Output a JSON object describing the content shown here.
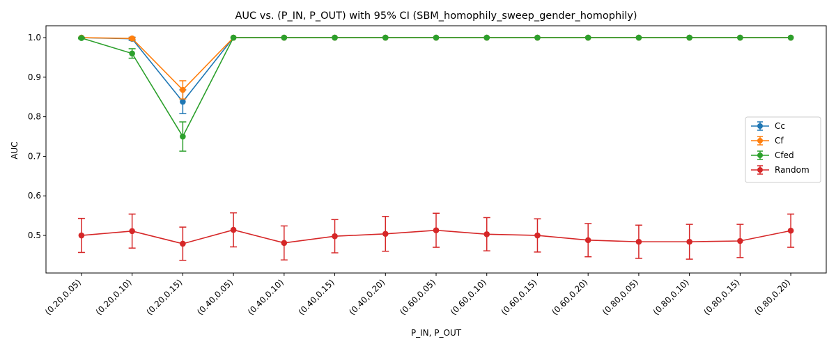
{
  "chart_data": {
    "type": "line",
    "title": "AUC vs. (P_IN, P_OUT) with 95% CI (SBM_homophily_sweep_gender_homophily)",
    "xlabel": "P_IN, P_OUT",
    "ylabel": "AUC",
    "categories": [
      "(0.20,0.05)",
      "(0.20,0.10)",
      "(0.20,0.15)",
      "(0.40,0.05)",
      "(0.40,0.10)",
      "(0.40,0.15)",
      "(0.40,0.20)",
      "(0.60,0.05)",
      "(0.60,0.10)",
      "(0.60,0.15)",
      "(0.60,0.20)",
      "(0.80,0.05)",
      "(0.80,0.10)",
      "(0.80,0.15)",
      "(0.80,0.20)"
    ],
    "ylim": [
      0.405,
      1.03
    ],
    "yticks": [
      0.5,
      0.6,
      0.7,
      0.8,
      0.9,
      1.0
    ],
    "legend_position": "center-right",
    "grid": false,
    "series": [
      {
        "name": "Cc",
        "color": "#1f77b4",
        "values": [
          1.0,
          0.997,
          0.838,
          1.0,
          1.0,
          1.0,
          1.0,
          1.0,
          1.0,
          1.0,
          1.0,
          1.0,
          1.0,
          1.0,
          1.0
        ],
        "err": [
          0.0,
          0.004,
          0.03,
          0,
          0,
          0,
          0,
          0,
          0,
          0,
          0,
          0,
          0,
          0,
          0
        ]
      },
      {
        "name": "Cf",
        "color": "#ff7f0e",
        "values": [
          1.0,
          0.998,
          0.868,
          1.0,
          1.0,
          1.0,
          1.0,
          1.0,
          1.0,
          1.0,
          1.0,
          1.0,
          1.0,
          1.0,
          1.0
        ],
        "err": [
          0.0,
          0.002,
          0.023,
          0,
          0,
          0,
          0,
          0,
          0,
          0,
          0,
          0,
          0,
          0,
          0
        ]
      },
      {
        "name": "Cfed",
        "color": "#2ca02c",
        "values": [
          0.999,
          0.96,
          0.75,
          1.0,
          1.0,
          1.0,
          1.0,
          1.0,
          1.0,
          1.0,
          1.0,
          1.0,
          1.0,
          1.0,
          1.0
        ],
        "err": [
          0.002,
          0.012,
          0.037,
          0,
          0,
          0,
          0,
          0,
          0,
          0,
          0,
          0,
          0,
          0,
          0
        ]
      },
      {
        "name": "Random",
        "color": "#d62728",
        "values": [
          0.5,
          0.511,
          0.479,
          0.514,
          0.481,
          0.498,
          0.504,
          0.513,
          0.503,
          0.5,
          0.488,
          0.484,
          0.484,
          0.486,
          0.512
        ],
        "err": [
          0.043,
          0.043,
          0.042,
          0.043,
          0.043,
          0.042,
          0.044,
          0.043,
          0.042,
          0.042,
          0.042,
          0.042,
          0.044,
          0.042,
          0.042
        ]
      }
    ]
  }
}
